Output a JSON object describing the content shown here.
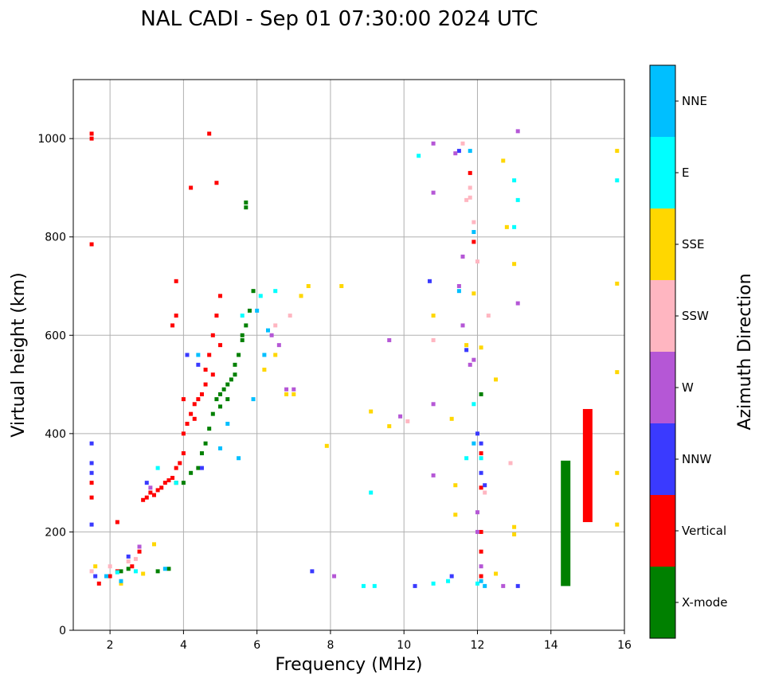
{
  "chart_data": {
    "type": "scatter",
    "title": "NAL CADI - Sep 01 07:30:00 2024 UTC",
    "xlabel": "Frequency (MHz)",
    "ylabel": "Virtual height (km)",
    "xlim": [
      1,
      16
    ],
    "ylim": [
      0,
      1120
    ],
    "xticks": [
      2,
      4,
      6,
      8,
      10,
      12,
      14,
      16
    ],
    "yticks": [
      0,
      200,
      400,
      600,
      800,
      1000
    ],
    "grid": true,
    "colorbar": {
      "label": "Azimuth Direction",
      "categories": [
        {
          "name": "X-mode",
          "color": "#008000"
        },
        {
          "name": "Vertical",
          "color": "#ff0000"
        },
        {
          "name": "NNW",
          "color": "#3a3aff"
        },
        {
          "name": "W",
          "color": "#b557d6"
        },
        {
          "name": "SSW",
          "color": "#ffb6c1"
        },
        {
          "name": "SSE",
          "color": "#ffd700"
        },
        {
          "name": "E",
          "color": "#00ffff"
        },
        {
          "name": "NNE",
          "color": "#00bfff"
        }
      ]
    },
    "series": [
      {
        "name": "X-mode",
        "points": [
          [
            2.3,
            120
          ],
          [
            2.5,
            125
          ],
          [
            3.3,
            120
          ],
          [
            3.6,
            125
          ],
          [
            3.8,
            300
          ],
          [
            4.0,
            300
          ],
          [
            4.2,
            320
          ],
          [
            4.4,
            330
          ],
          [
            4.5,
            360
          ],
          [
            4.6,
            380
          ],
          [
            4.7,
            410
          ],
          [
            4.8,
            440
          ],
          [
            4.9,
            470
          ],
          [
            5.0,
            480
          ],
          [
            5.1,
            490
          ],
          [
            5.2,
            500
          ],
          [
            5.3,
            510
          ],
          [
            5.4,
            540
          ],
          [
            5.5,
            560
          ],
          [
            5.6,
            590
          ],
          [
            5.7,
            620
          ],
          [
            5.8,
            650
          ],
          [
            5.9,
            690
          ],
          [
            5.7,
            860
          ],
          [
            5.7,
            870
          ],
          [
            5.0,
            455
          ],
          [
            5.2,
            470
          ],
          [
            5.4,
            520
          ],
          [
            5.6,
            600
          ],
          [
            12.1,
            480
          ]
        ]
      },
      {
        "name": "Vertical",
        "points": [
          [
            1.5,
            1010
          ],
          [
            1.5,
            1000
          ],
          [
            1.5,
            785
          ],
          [
            1.5,
            270
          ],
          [
            1.5,
            300
          ],
          [
            1.7,
            95
          ],
          [
            2.0,
            110
          ],
          [
            2.2,
            120
          ],
          [
            2.6,
            130
          ],
          [
            2.8,
            160
          ],
          [
            2.9,
            265
          ],
          [
            3.0,
            270
          ],
          [
            3.1,
            280
          ],
          [
            3.2,
            275
          ],
          [
            3.3,
            285
          ],
          [
            3.4,
            290
          ],
          [
            3.5,
            300
          ],
          [
            3.6,
            305
          ],
          [
            3.7,
            310
          ],
          [
            3.8,
            330
          ],
          [
            3.9,
            340
          ],
          [
            4.0,
            360
          ],
          [
            4.0,
            400
          ],
          [
            4.1,
            420
          ],
          [
            4.2,
            440
          ],
          [
            4.3,
            460
          ],
          [
            4.4,
            470
          ],
          [
            4.5,
            480
          ],
          [
            4.6,
            500
          ],
          [
            4.6,
            530
          ],
          [
            4.7,
            560
          ],
          [
            4.8,
            600
          ],
          [
            4.9,
            640
          ],
          [
            5.0,
            680
          ],
          [
            4.7,
            1010
          ],
          [
            4.9,
            910
          ],
          [
            4.2,
            900
          ],
          [
            3.8,
            710
          ],
          [
            3.8,
            640
          ],
          [
            3.7,
            620
          ],
          [
            2.2,
            220
          ],
          [
            4.0,
            470
          ],
          [
            4.3,
            430
          ],
          [
            4.8,
            520
          ],
          [
            5.0,
            580
          ],
          [
            11.8,
            930
          ],
          [
            11.9,
            790
          ],
          [
            12.1,
            360
          ],
          [
            12.1,
            290
          ],
          [
            12.1,
            200
          ],
          [
            12.1,
            160
          ],
          [
            12.1,
            110
          ]
        ]
      },
      {
        "name": "NNW",
        "points": [
          [
            1.5,
            380
          ],
          [
            1.5,
            340
          ],
          [
            1.5,
            320
          ],
          [
            1.5,
            215
          ],
          [
            1.6,
            110
          ],
          [
            2.5,
            150
          ],
          [
            3.0,
            300
          ],
          [
            4.1,
            560
          ],
          [
            4.4,
            540
          ],
          [
            4.5,
            330
          ],
          [
            10.7,
            710
          ],
          [
            11.3,
            110
          ],
          [
            11.5,
            975
          ],
          [
            11.7,
            570
          ],
          [
            12.0,
            400
          ],
          [
            12.1,
            320
          ],
          [
            12.2,
            295
          ],
          [
            12.1,
            380
          ],
          [
            10.3,
            90
          ],
          [
            13.1,
            90
          ],
          [
            7.5,
            120
          ]
        ]
      },
      {
        "name": "W",
        "points": [
          [
            2.8,
            170
          ],
          [
            3.1,
            290
          ],
          [
            6.4,
            600
          ],
          [
            6.6,
            580
          ],
          [
            6.8,
            490
          ],
          [
            7.0,
            490
          ],
          [
            8.1,
            110
          ],
          [
            9.6,
            590
          ],
          [
            10.8,
            990
          ],
          [
            10.8,
            890
          ],
          [
            10.8,
            460
          ],
          [
            10.8,
            315
          ],
          [
            11.4,
            970
          ],
          [
            11.5,
            700
          ],
          [
            11.6,
            620
          ],
          [
            11.6,
            760
          ],
          [
            11.8,
            540
          ],
          [
            11.9,
            550
          ],
          [
            12.0,
            240
          ],
          [
            12.0,
            200
          ],
          [
            12.1,
            130
          ],
          [
            12.7,
            90
          ],
          [
            13.1,
            1015
          ],
          [
            13.1,
            665
          ],
          [
            9.9,
            435
          ]
        ]
      },
      {
        "name": "SSW",
        "points": [
          [
            1.5,
            120
          ],
          [
            2.0,
            130
          ],
          [
            2.5,
            140
          ],
          [
            2.7,
            145
          ],
          [
            6.5,
            620
          ],
          [
            6.9,
            640
          ],
          [
            10.1,
            425
          ],
          [
            10.8,
            590
          ],
          [
            11.6,
            990
          ],
          [
            11.7,
            875
          ],
          [
            11.8,
            900
          ],
          [
            11.8,
            880
          ],
          [
            11.9,
            830
          ],
          [
            12.0,
            750
          ],
          [
            12.2,
            280
          ],
          [
            12.3,
            640
          ],
          [
            12.9,
            340
          ]
        ]
      },
      {
        "name": "SSE",
        "points": [
          [
            1.6,
            130
          ],
          [
            2.3,
            95
          ],
          [
            2.9,
            115
          ],
          [
            3.2,
            175
          ],
          [
            6.2,
            530
          ],
          [
            6.5,
            560
          ],
          [
            6.8,
            480
          ],
          [
            7.0,
            480
          ],
          [
            7.2,
            680
          ],
          [
            7.4,
            700
          ],
          [
            7.9,
            375
          ],
          [
            8.3,
            700
          ],
          [
            9.1,
            445
          ],
          [
            9.6,
            415
          ],
          [
            10.8,
            640
          ],
          [
            11.3,
            430
          ],
          [
            11.4,
            295
          ],
          [
            11.4,
            235
          ],
          [
            11.7,
            580
          ],
          [
            11.9,
            685
          ],
          [
            12.1,
            575
          ],
          [
            12.5,
            510
          ],
          [
            12.5,
            115
          ],
          [
            12.7,
            955
          ],
          [
            12.8,
            820
          ],
          [
            13.0,
            745
          ],
          [
            13.0,
            210
          ],
          [
            13.0,
            195
          ],
          [
            15.8,
            975
          ],
          [
            15.8,
            705
          ],
          [
            15.8,
            525
          ],
          [
            15.8,
            320
          ],
          [
            15.8,
            215
          ]
        ]
      },
      {
        "name": "E",
        "points": [
          [
            2.2,
            118
          ],
          [
            2.7,
            120
          ],
          [
            3.3,
            330
          ],
          [
            3.8,
            300
          ],
          [
            5.6,
            640
          ],
          [
            6.1,
            680
          ],
          [
            6.5,
            690
          ],
          [
            8.9,
            90
          ],
          [
            9.2,
            90
          ],
          [
            9.1,
            280
          ],
          [
            10.4,
            965
          ],
          [
            10.8,
            95
          ],
          [
            11.2,
            100
          ],
          [
            11.7,
            350
          ],
          [
            11.9,
            460
          ],
          [
            12.0,
            95
          ],
          [
            12.1,
            350
          ],
          [
            13.0,
            820
          ],
          [
            13.1,
            875
          ],
          [
            13.0,
            915
          ],
          [
            15.8,
            915
          ]
        ]
      },
      {
        "name": "NNE",
        "points": [
          [
            1.9,
            110
          ],
          [
            2.3,
            100
          ],
          [
            3.5,
            125
          ],
          [
            4.4,
            560
          ],
          [
            5.2,
            420
          ],
          [
            5.0,
            370
          ],
          [
            5.5,
            350
          ],
          [
            5.9,
            470
          ],
          [
            6.0,
            650
          ],
          [
            6.2,
            560
          ],
          [
            6.3,
            610
          ],
          [
            11.5,
            690
          ],
          [
            11.8,
            975
          ],
          [
            11.9,
            810
          ],
          [
            11.9,
            380
          ],
          [
            12.1,
            100
          ],
          [
            12.2,
            90
          ]
        ]
      }
    ],
    "bars": [
      {
        "series": "X-mode",
        "x": 14.4,
        "y_from": 90,
        "y_to": 345
      },
      {
        "series": "Vertical",
        "x": 15.0,
        "y_from": 220,
        "y_to": 450
      }
    ]
  }
}
